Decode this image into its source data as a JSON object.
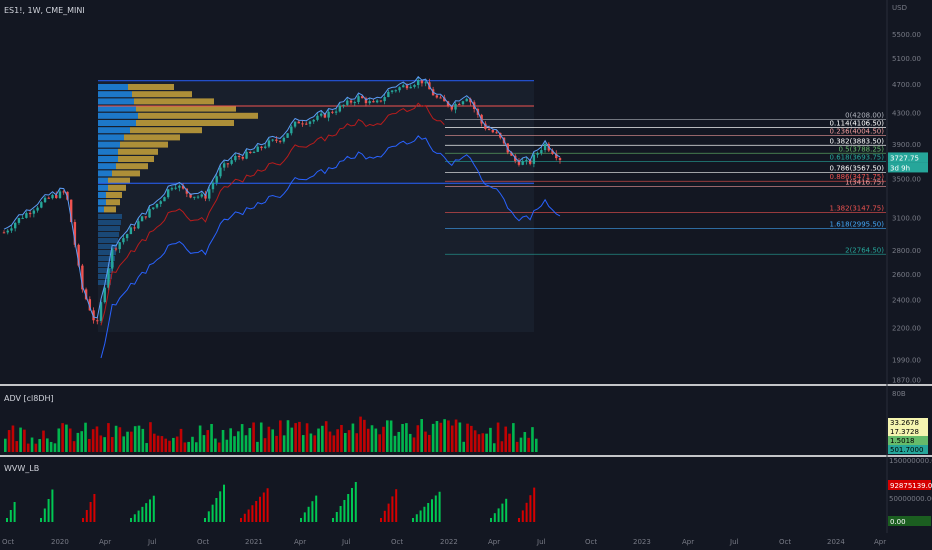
{
  "header": {
    "symbol_line": "ES1!, 1W, CME_MINI"
  },
  "colors": {
    "bg": "#131722",
    "up": "#26a69a",
    "down": "#ef5350",
    "blue": "#2962ff",
    "vp_blue": "#1e88e5",
    "vp_gold": "#c8a33b",
    "green": "#00c853",
    "red": "#d50000"
  },
  "price_axis": {
    "unit": "USD",
    "ticks": [
      "5500.00",
      "5100.00",
      "4700.00",
      "4300.00",
      "3900.00",
      "3500.00",
      "3100.00",
      "2800.00",
      "2600.00",
      "2400.00",
      "2200.00",
      "1990.00",
      "1870.00"
    ]
  },
  "time_axis": {
    "labels": [
      "Oct",
      "2020",
      "Apr",
      "Jul",
      "Oct",
      "2021",
      "Apr",
      "Jul",
      "Oct",
      "2022",
      "Apr",
      "Jul",
      "Oct",
      "2023",
      "Apr",
      "Jul",
      "Oct",
      "2024",
      "Apr"
    ]
  },
  "fib_levels": [
    {
      "label": "0(4208.00)",
      "color": "#b2b5be"
    },
    {
      "label": "0.114(4106.50)",
      "color": "#ffffff"
    },
    {
      "label": "0.236(4004.50)",
      "color": "#ef9a9a"
    },
    {
      "label": "0.382(3883.50)",
      "color": "#ffffff"
    },
    {
      "label": "0.5(3788.25)",
      "color": "#66bb6a"
    },
    {
      "label": "0.618(3693.75)",
      "color": "#26a69a"
    },
    {
      "label": "0.786(3567.50)",
      "color": "#ffffff"
    },
    {
      "label": "0.886(3471.75)",
      "color": "#ef5350"
    },
    {
      "label": "1(3416.75)",
      "color": "#ef9a9a"
    },
    {
      "label": "1.382(3147.75)",
      "color": "#ef5350"
    },
    {
      "label": "1.618(2995.50)",
      "color": "#42a5f5"
    },
    {
      "label": "2(2764.50)",
      "color": "#26a69a"
    }
  ],
  "price_tags": [
    {
      "text": "3727.75",
      "bg": "#26a69a"
    },
    {
      "text": "3d 9h",
      "bg": "#26a69a"
    }
  ],
  "adv_pane": {
    "title": "ADV [cl8DH]",
    "scale_label": "80B",
    "tags": [
      {
        "text": "33.2678",
        "bg": "#f5f5b0",
        "fg": "#000000"
      },
      {
        "text": "17.3728",
        "bg": "#f5f5b0",
        "fg": "#000000"
      },
      {
        "text": "1.5018",
        "bg": "#66bb6a",
        "fg": "#000000"
      },
      {
        "text": "501.7000",
        "bg": "#26a69a",
        "fg": "#000000"
      }
    ]
  },
  "wvw_pane": {
    "title": "WVW_LB",
    "scale_ticks": [
      "150000000.00",
      "50000000.00"
    ],
    "tags": [
      {
        "text": "92875139.00",
        "bg": "#d50000",
        "fg": "#ffffff"
      },
      {
        "text": "0.00",
        "bg": "#1b5e20",
        "fg": "#ffffff"
      }
    ]
  },
  "chart_data": {
    "type": "candlestick",
    "symbol": "ES1!",
    "interval": "1W",
    "exchange": "CME_MINI",
    "close_series": [
      [
        "2019-10",
        2960
      ],
      [
        "2019-11",
        3090
      ],
      [
        "2019-12",
        3200
      ],
      [
        "2020-01",
        3300
      ],
      [
        "2020-02",
        3360
      ],
      [
        "2020-03",
        2500
      ],
      [
        "2020-03-23",
        2200
      ],
      [
        "2020-04",
        2800
      ],
      [
        "2020-05",
        2950
      ],
      [
        "2020-06",
        3100
      ],
      [
        "2020-07",
        3250
      ],
      [
        "2020-08",
        3450
      ],
      [
        "2020-09",
        3330
      ],
      [
        "2020-10",
        3300
      ],
      [
        "2020-11",
        3600
      ],
      [
        "2020-12",
        3740
      ],
      [
        "2021-01",
        3780
      ],
      [
        "2021-02",
        3900
      ],
      [
        "2021-03",
        3970
      ],
      [
        "2021-04",
        4180
      ],
      [
        "2021-05",
        4200
      ],
      [
        "2021-06",
        4290
      ],
      [
        "2021-07",
        4400
      ],
      [
        "2021-08",
        4510
      ],
      [
        "2021-09",
        4400
      ],
      [
        "2021-10",
        4600
      ],
      [
        "2021-11",
        4680
      ],
      [
        "2021-12",
        4760
      ],
      [
        "2022-01",
        4500
      ],
      [
        "2022-02",
        4380
      ],
      [
        "2022-03",
        4530
      ],
      [
        "2022-04",
        4130
      ],
      [
        "2022-05",
        4000
      ],
      [
        "2022-06",
        3700
      ],
      [
        "2022-06-17",
        3670
      ],
      [
        "2022-07",
        3900
      ],
      [
        "2022-07-15",
        3727.75
      ]
    ],
    "fib_retracement": [
      {
        "ratio": 0,
        "price": 4208.0
      },
      {
        "ratio": 0.114,
        "price": 4106.5
      },
      {
        "ratio": 0.236,
        "price": 4004.5
      },
      {
        "ratio": 0.382,
        "price": 3883.5
      },
      {
        "ratio": 0.5,
        "price": 3788.25
      },
      {
        "ratio": 0.618,
        "price": 3693.75
      },
      {
        "ratio": 0.786,
        "price": 3567.5
      },
      {
        "ratio": 0.886,
        "price": 3471.75
      },
      {
        "ratio": 1,
        "price": 3416.75
      },
      {
        "ratio": 1.382,
        "price": 3147.75
      },
      {
        "ratio": 1.618,
        "price": 2995.5
      },
      {
        "ratio": 2,
        "price": 2764.5
      }
    ],
    "horizontal_lines": [
      {
        "price": 4750,
        "color": "#2962ff"
      },
      {
        "price": 4390,
        "color": "#ef5350"
      },
      {
        "price": 3450,
        "color": "#2962ff"
      }
    ],
    "last_price": 3727.75,
    "y_axis": {
      "scale": "log",
      "range": [
        1800,
        5700
      ]
    },
    "volume_profile": true,
    "grid": false
  }
}
